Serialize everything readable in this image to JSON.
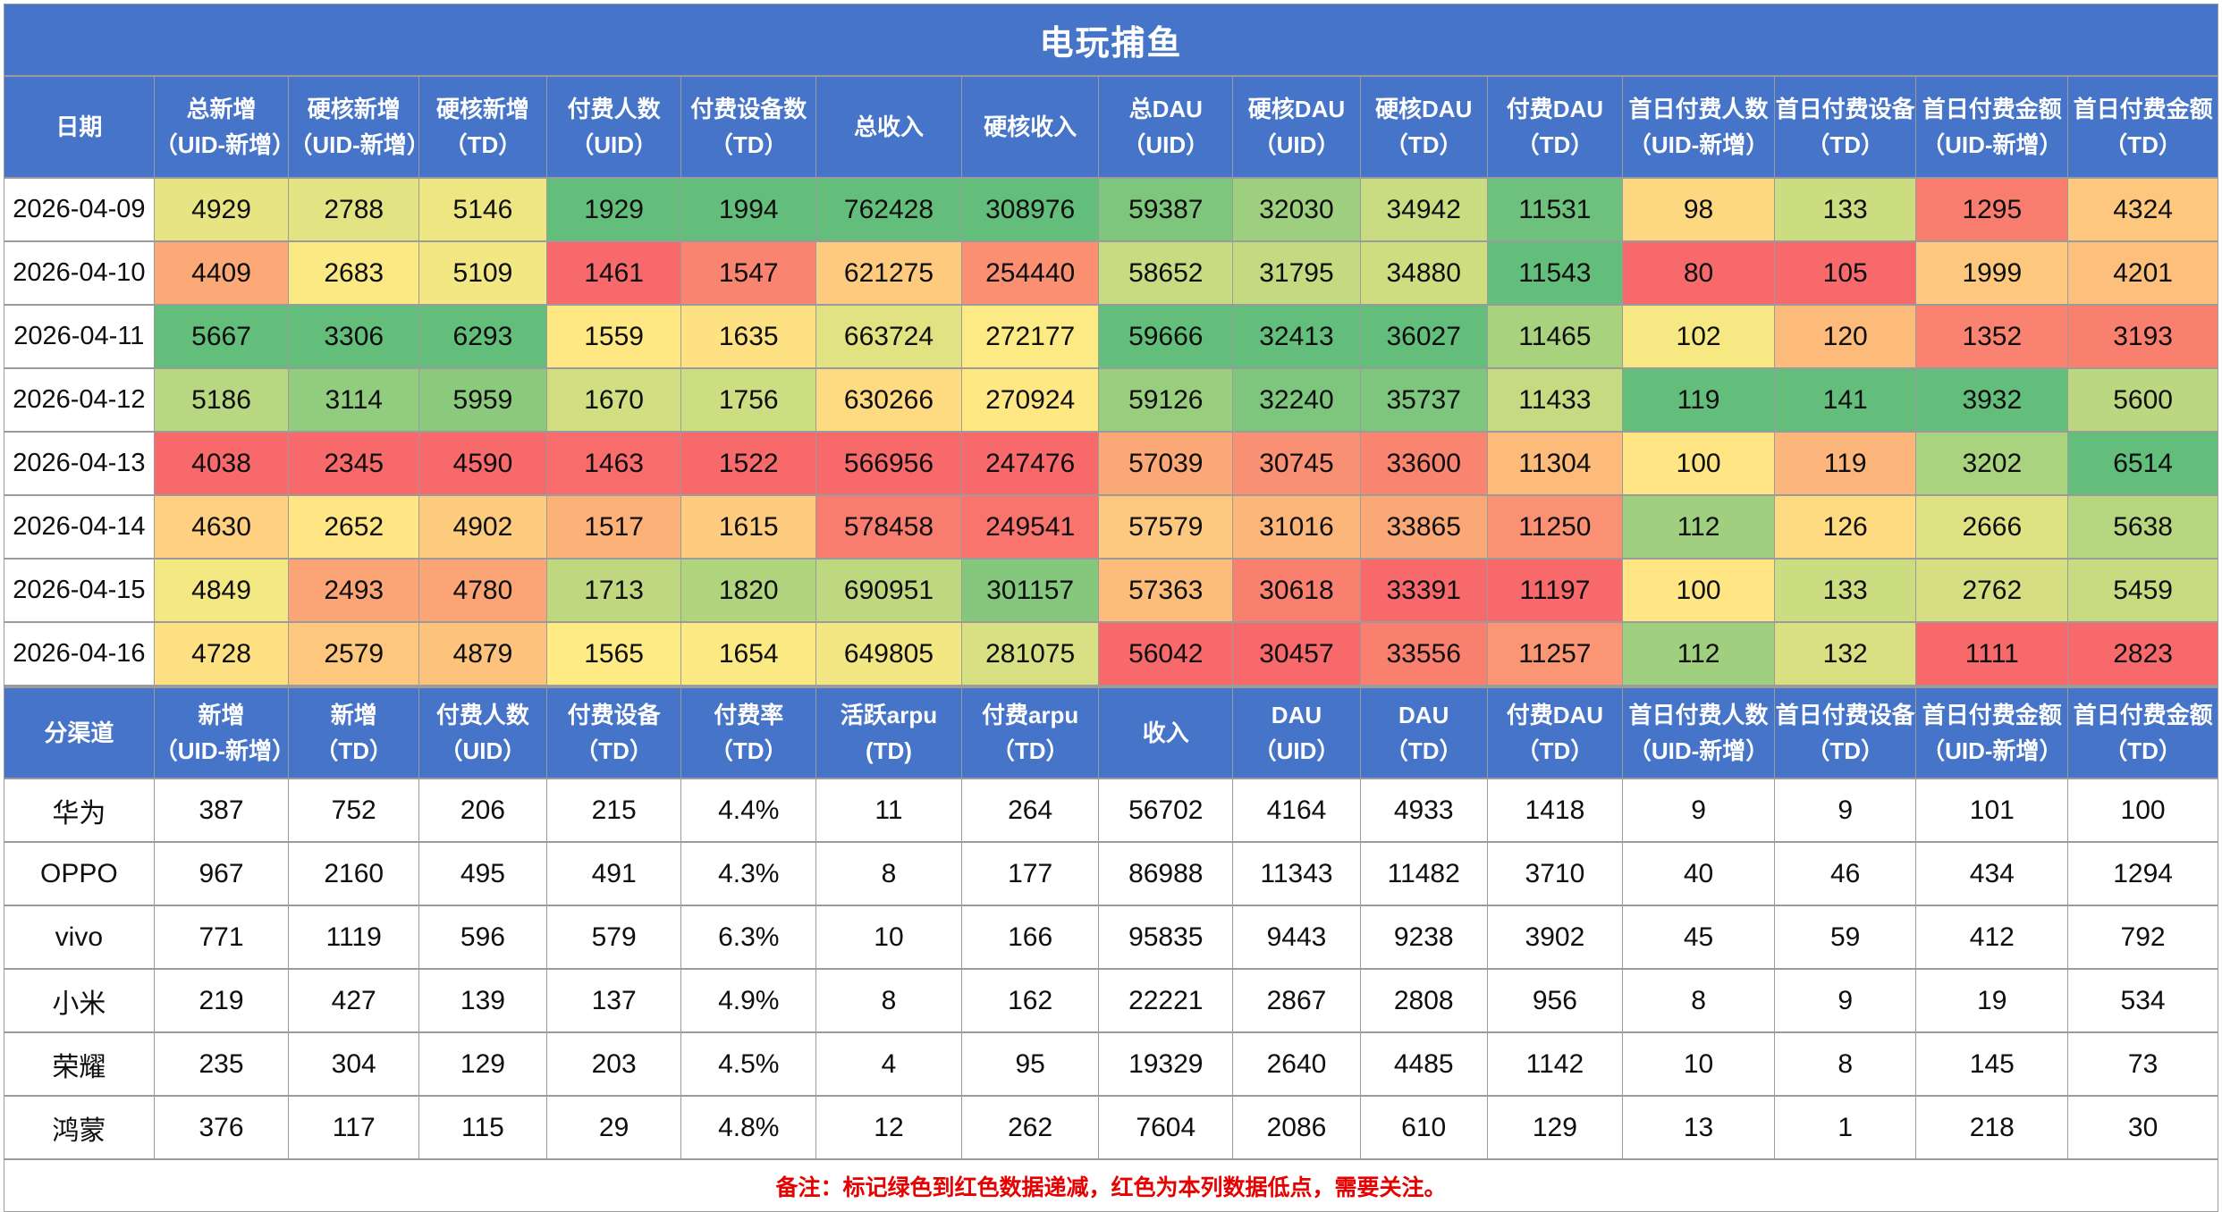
{
  "title": "电玩捕鱼",
  "colors": {
    "header_bg": "#4574C9",
    "border": "#9b9b9b",
    "scale_low": "#F8696B",
    "scale_mid": "#FFEB84",
    "scale_high": "#63BE7B",
    "note_text": "#E60000",
    "title_text": "#ffffff"
  },
  "note": "备注：标记绿色到红色数据递减，红色为本列数据低点，需要关注。",
  "daily_table": {
    "headers": [
      [
        "日期",
        ""
      ],
      [
        "总新增",
        "（UID-新增）"
      ],
      [
        "硬核新增",
        "（UID-新增）"
      ],
      [
        "硬核新增",
        "（TD）"
      ],
      [
        "付费人数",
        "（UID）"
      ],
      [
        "付费设备数",
        "（TD）"
      ],
      [
        "总收入",
        ""
      ],
      [
        "硬核收入",
        ""
      ],
      [
        "总DAU",
        "（UID）"
      ],
      [
        "硬核DAU",
        "（UID）"
      ],
      [
        "硬核DAU",
        "（TD）"
      ],
      [
        "付费DAU",
        "（TD）"
      ],
      [
        "首日付费人数",
        "（UID-新增）"
      ],
      [
        "首日付费设备",
        "（TD）"
      ],
      [
        "首日付费金额",
        "（UID-新增）"
      ],
      [
        "首日付费金额",
        "（TD）"
      ]
    ],
    "rows": [
      {
        "date": "2026-04-09",
        "values": [
          4929,
          2788,
          5146,
          1929,
          1994,
          762428,
          308976,
          59387,
          32030,
          34942,
          11531,
          98,
          133,
          1295,
          4324
        ]
      },
      {
        "date": "2026-04-10",
        "values": [
          4409,
          2683,
          5109,
          1461,
          1547,
          621275,
          254440,
          58652,
          31795,
          34880,
          11543,
          80,
          105,
          1999,
          4201
        ]
      },
      {
        "date": "2026-04-11",
        "values": [
          5667,
          3306,
          6293,
          1559,
          1635,
          663724,
          272177,
          59666,
          32413,
          36027,
          11465,
          102,
          120,
          1352,
          3193
        ]
      },
      {
        "date": "2026-04-12",
        "values": [
          5186,
          3114,
          5959,
          1670,
          1756,
          630266,
          270924,
          59126,
          32240,
          35737,
          11433,
          119,
          141,
          3932,
          5600
        ]
      },
      {
        "date": "2026-04-13",
        "values": [
          4038,
          2345,
          4590,
          1463,
          1522,
          566956,
          247476,
          57039,
          30745,
          33600,
          11304,
          100,
          119,
          3202,
          6514
        ]
      },
      {
        "date": "2026-04-14",
        "values": [
          4630,
          2652,
          4902,
          1517,
          1615,
          578458,
          249541,
          57579,
          31016,
          33865,
          11250,
          112,
          126,
          2666,
          5638
        ]
      },
      {
        "date": "2026-04-15",
        "values": [
          4849,
          2493,
          4780,
          1713,
          1820,
          690951,
          301157,
          57363,
          30618,
          33391,
          11197,
          100,
          133,
          2762,
          5459
        ]
      },
      {
        "date": "2026-04-16",
        "values": [
          4728,
          2579,
          4879,
          1565,
          1654,
          649805,
          281075,
          56042,
          30457,
          33556,
          11257,
          112,
          132,
          1111,
          2823
        ]
      }
    ]
  },
  "channel_table": {
    "headers": [
      [
        "分渠道",
        ""
      ],
      [
        "新增",
        "（UID-新增）"
      ],
      [
        "新增",
        "（TD）"
      ],
      [
        "付费人数",
        "（UID）"
      ],
      [
        "付费设备",
        "（TD）"
      ],
      [
        "付费率",
        "（TD）"
      ],
      [
        "活跃arpu",
        "(TD)"
      ],
      [
        "付费arpu",
        "（TD）"
      ],
      [
        "收入",
        ""
      ],
      [
        "DAU",
        "（UID）"
      ],
      [
        "DAU",
        "（TD）"
      ],
      [
        "付费DAU",
        "（TD）"
      ],
      [
        "首日付费人数",
        "（UID-新增）"
      ],
      [
        "首日付费设备",
        "（TD）"
      ],
      [
        "首日付费金额",
        "（UID-新增）"
      ],
      [
        "首日付费金额",
        "（TD）"
      ]
    ],
    "rows": [
      {
        "channel": "华为",
        "values": [
          "387",
          "752",
          "206",
          "215",
          "4.4%",
          "11",
          "264",
          "56702",
          "4164",
          "4933",
          "1418",
          "9",
          "9",
          "101",
          "100"
        ]
      },
      {
        "channel": "OPPO",
        "values": [
          "967",
          "2160",
          "495",
          "491",
          "4.3%",
          "8",
          "177",
          "86988",
          "11343",
          "11482",
          "3710",
          "40",
          "46",
          "434",
          "1294"
        ]
      },
      {
        "channel": "vivo",
        "values": [
          "771",
          "1119",
          "596",
          "579",
          "6.3%",
          "10",
          "166",
          "95835",
          "9443",
          "9238",
          "3902",
          "45",
          "59",
          "412",
          "792"
        ]
      },
      {
        "channel": "小米",
        "values": [
          "219",
          "427",
          "139",
          "137",
          "4.9%",
          "8",
          "162",
          "22221",
          "2867",
          "2808",
          "956",
          "8",
          "9",
          "19",
          "534"
        ]
      },
      {
        "channel": "荣耀",
        "values": [
          "235",
          "304",
          "129",
          "203",
          "4.5%",
          "4",
          "95",
          "19329",
          "2640",
          "4485",
          "1142",
          "10",
          "8",
          "145",
          "73"
        ]
      },
      {
        "channel": "鸿蒙",
        "values": [
          "376",
          "117",
          "115",
          "29",
          "4.8%",
          "12",
          "262",
          "7604",
          "2086",
          "610",
          "129",
          "13",
          "1",
          "218",
          "30"
        ]
      }
    ]
  },
  "layout": {
    "column_widths_pct": [
      6.78,
      6.09,
      5.89,
      5.77,
      6.09,
      6.09,
      6.58,
      6.21,
      6.05,
      5.77,
      5.73,
      6.13,
      6.86,
      6.41,
      6.86,
      6.78
    ]
  }
}
